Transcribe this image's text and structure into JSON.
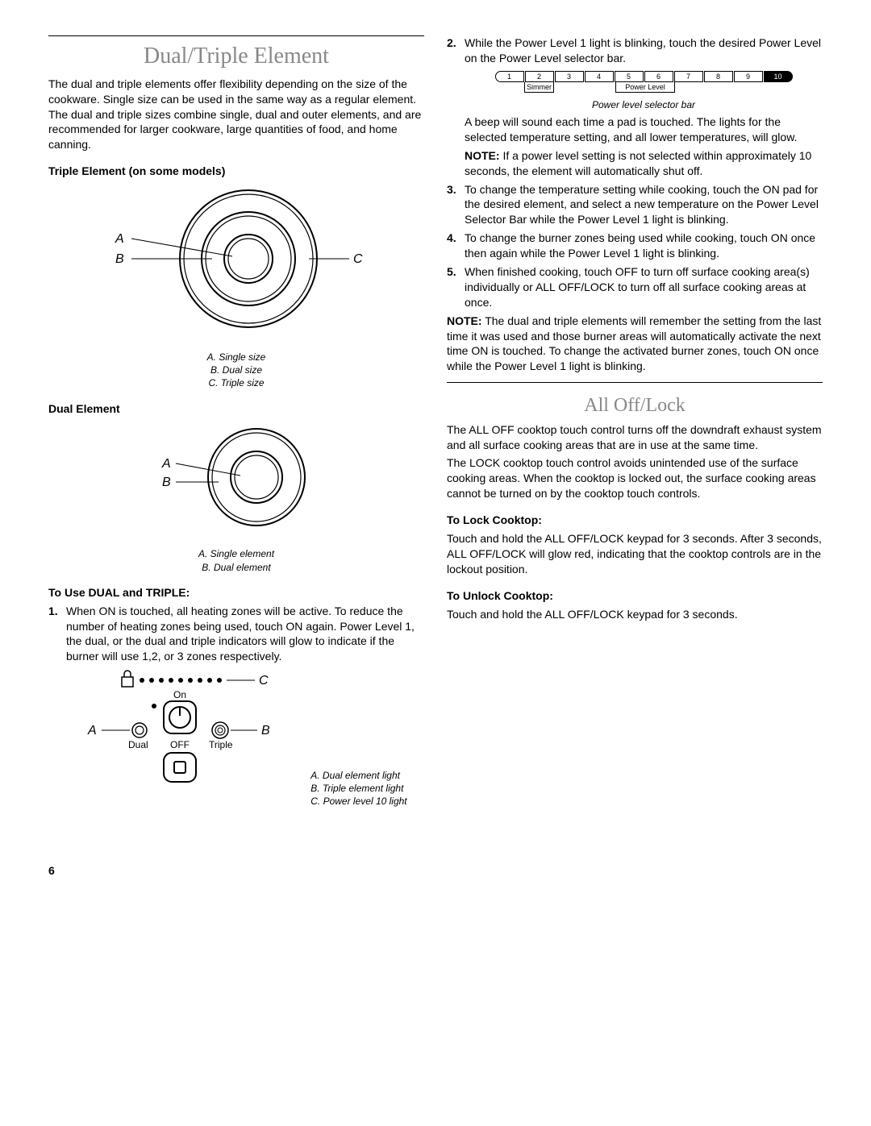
{
  "page_number": "6",
  "left": {
    "section_title": "Dual/Triple Element",
    "intro": "The dual and triple elements offer flexibility depending on the size of the cookware. Single size can be used in the same way as a regular element. The dual and triple sizes combine single, dual and outer elements, and are recommended for larger cookware, large quantities of food, and home canning.",
    "triple_heading": "Triple Element (on some models)",
    "triple_diagram": {
      "labels": {
        "A": "A",
        "B": "B",
        "C": "C"
      },
      "legend": [
        "A. Single size",
        "B. Dual size",
        "C. Triple size"
      ]
    },
    "dual_heading": "Dual Element",
    "dual_diagram": {
      "labels": {
        "A": "A",
        "B": "B"
      },
      "legend": [
        "A. Single element",
        "B. Dual element"
      ]
    },
    "use_heading": "To Use DUAL and TRIPLE:",
    "step1": "When ON is touched, all heating zones will be active. To reduce the number of heating zones being used, touch ON again. Power Level 1, the dual, or the dual and triple indicators will glow to indicate if the burner will use 1,2, or 3 zones respectively.",
    "control_diagram": {
      "labels": {
        "A": "A",
        "B": "B",
        "C": "C",
        "On": "On",
        "Off": "OFF",
        "Dual": "Dual",
        "Triple": "Triple"
      },
      "legend": [
        "A. Dual element light",
        "B. Triple element light",
        "C. Power level 10 light"
      ]
    }
  },
  "right": {
    "step2": "While the Power Level 1 light is blinking, touch the desired Power Level on the Power Level selector bar.",
    "power_bar": {
      "cells": [
        "1",
        "2",
        "3",
        "4",
        "5",
        "6",
        "7",
        "8",
        "9",
        "10"
      ],
      "simmer": "Simmer",
      "power_level": "Power Level",
      "caption": "Power level selector bar"
    },
    "after_bar": "A beep will sound each time a pad is touched. The lights for the selected temperature setting, and all lower temperatures, will glow.",
    "note1_label": "NOTE:",
    "note1": " If a power level setting is not selected within approximately 10 seconds, the element will automatically shut off.",
    "step3": "To change the temperature setting while cooking, touch the ON pad for the desired element, and select a new temperature on the Power Level Selector Bar while the Power Level 1 light is blinking.",
    "step4": "To change the burner zones being used while cooking, touch ON once then again while the Power Level 1 light is blinking.",
    "step5": "When finished cooking, touch OFF to turn off surface cooking area(s) individually or ALL OFF/LOCK to turn off all surface cooking areas at once.",
    "note2_label": "NOTE:",
    "note2": " The dual and triple elements will remember the setting from the last time it was used and those burner areas will automatically activate the next time ON is touched. To change the activated burner zones, touch ON once while the Power Level 1 light is blinking.",
    "alloff_title": "All Off/Lock",
    "alloff_p1": "The ALL OFF cooktop touch control turns off the downdraft exhaust system and all surface cooking areas that are in use at the same time.",
    "alloff_p2": "The LOCK cooktop touch control avoids unintended use of the surface cooking areas. When the cooktop is locked out, the surface cooking areas cannot be turned on by the cooktop touch controls.",
    "lock_heading": "To Lock Cooktop:",
    "lock_text": "Touch and hold the ALL OFF/LOCK keypad for 3 seconds. After 3 seconds, ALL OFF/LOCK will glow red, indicating that the cooktop controls are in the lockout position.",
    "unlock_heading": "To Unlock Cooktop:",
    "unlock_text": "Touch and hold the ALL OFF/LOCK keypad for 3 seconds."
  }
}
